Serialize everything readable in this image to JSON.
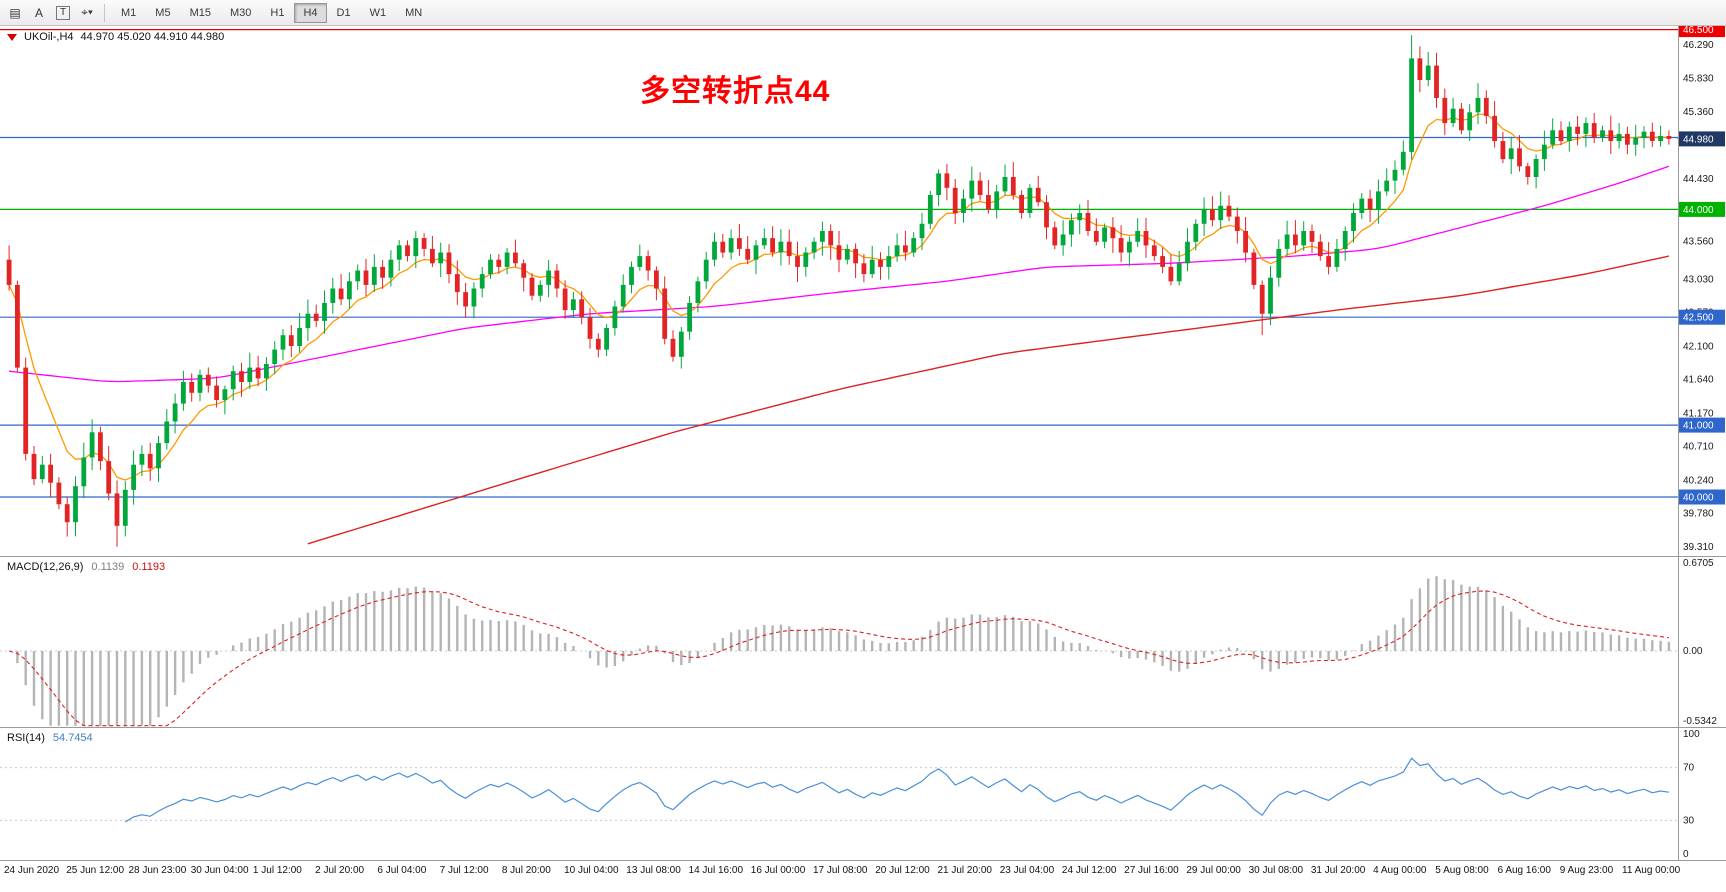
{
  "toolbar": {
    "tools": [
      {
        "id": "chart-list",
        "glyph": "▤"
      },
      {
        "id": "label-tool",
        "glyph": "A"
      },
      {
        "id": "text-tool",
        "glyph": "T"
      },
      {
        "id": "shapes-dropdown",
        "glyph": "⌖",
        "caret": "▾"
      }
    ],
    "timeframes": [
      "M1",
      "M5",
      "M15",
      "M30",
      "H1",
      "H4",
      "D1",
      "W1",
      "MN"
    ],
    "active_timeframe": "H4"
  },
  "chart": {
    "symbol": "UKOil-,H4",
    "ohlc": "44.970 45.020 44.910 44.980",
    "annotation": "多空转折点44",
    "annotation_color": "#ff0000",
    "candle_up": "#00a83c",
    "candle_down": "#e32424",
    "current_price_tag": {
      "label": "44.980",
      "value": 44.98,
      "bg": "#1f3864"
    },
    "levels": [
      {
        "value": 46.5,
        "label": "46.500",
        "color": "#ee0000",
        "tag": true
      },
      {
        "value": 45.0,
        "label": "",
        "color": "#2f66cc",
        "tag": false
      },
      {
        "value": 44.0,
        "label": "44.000",
        "color": "#00b200",
        "tag": true
      },
      {
        "value": 42.5,
        "label": "42.500",
        "color": "#2f66cc",
        "tag": true
      },
      {
        "value": 41.0,
        "label": "41.000",
        "color": "#2f66cc",
        "tag": true
      },
      {
        "value": 40.0,
        "label": "40.000",
        "color": "#2f66cc",
        "tag": true
      }
    ],
    "price_ticks": [
      "46.290",
      "45.830",
      "45.360",
      "44.430",
      "43.560",
      "43.030",
      "42.570",
      "42.100",
      "41.640",
      "41.170",
      "40.710",
      "40.240",
      "39.780",
      "39.310"
    ]
  },
  "chart_data": {
    "type": "candlestick",
    "symbol": "UKOil-",
    "timeframe": "H4",
    "title_annotation": "多空转折点44",
    "price_range": [
      39.18,
      46.55
    ],
    "open_first": 43.3,
    "closes": [
      42.95,
      41.8,
      40.6,
      40.25,
      40.45,
      40.2,
      39.9,
      39.65,
      40.15,
      40.55,
      40.9,
      40.5,
      40.05,
      39.6,
      40.1,
      40.45,
      40.6,
      40.4,
      40.75,
      41.05,
      41.3,
      41.6,
      41.45,
      41.7,
      41.55,
      41.35,
      41.5,
      41.75,
      41.6,
      41.8,
      41.65,
      41.85,
      42.05,
      42.25,
      42.1,
      42.35,
      42.55,
      42.45,
      42.7,
      42.9,
      42.75,
      43.0,
      43.15,
      42.95,
      43.2,
      43.05,
      43.3,
      43.5,
      43.35,
      43.6,
      43.45,
      43.25,
      43.4,
      43.1,
      42.85,
      42.65,
      42.9,
      43.1,
      43.3,
      43.2,
      43.4,
      43.25,
      43.05,
      42.8,
      42.95,
      43.15,
      42.9,
      42.6,
      42.75,
      42.5,
      42.2,
      42.05,
      42.35,
      42.65,
      42.95,
      43.2,
      43.35,
      43.15,
      42.9,
      42.2,
      41.95,
      42.3,
      42.7,
      43.0,
      43.3,
      43.55,
      43.4,
      43.6,
      43.45,
      43.3,
      43.5,
      43.6,
      43.4,
      43.55,
      43.35,
      43.2,
      43.4,
      43.55,
      43.7,
      43.5,
      43.3,
      43.45,
      43.25,
      43.1,
      43.3,
      43.2,
      43.35,
      43.5,
      43.4,
      43.6,
      43.8,
      44.2,
      44.5,
      44.3,
      43.95,
      44.15,
      44.4,
      44.2,
      44.0,
      44.25,
      44.45,
      44.2,
      43.95,
      44.3,
      44.1,
      43.75,
      43.5,
      43.65,
      43.85,
      43.95,
      43.7,
      43.55,
      43.75,
      43.6,
      43.4,
      43.55,
      43.7,
      43.5,
      43.35,
      43.2,
      43.0,
      43.25,
      43.55,
      43.8,
      44.0,
      43.85,
      44.05,
      43.9,
      43.7,
      43.4,
      42.95,
      42.55,
      43.05,
      43.45,
      43.65,
      43.5,
      43.7,
      43.55,
      43.35,
      43.2,
      43.45,
      43.7,
      43.95,
      44.15,
      44.0,
      44.25,
      44.4,
      44.55,
      44.8,
      46.1,
      45.8,
      46.0,
      45.55,
      45.2,
      45.4,
      45.1,
      45.35,
      45.55,
      45.3,
      44.95,
      44.7,
      44.85,
      44.6,
      44.45,
      44.7,
      44.9,
      45.1,
      44.95,
      45.15,
      45.05,
      45.2,
      45.0,
      45.1,
      44.95,
      45.05,
      44.9,
      45.0,
      45.08,
      44.95,
      45.02,
      44.98
    ],
    "wick_overrides": {
      "7": {
        "low": 39.45
      },
      "13": {
        "low": 39.31
      },
      "151": {
        "low": 42.25
      },
      "169": {
        "high": 46.42
      }
    },
    "overlays": {
      "ma_fast": {
        "color": "#ff9900",
        "type": "ema",
        "period": 8
      },
      "ma_mid": {
        "color": "#ff00ff",
        "keypoints": [
          [
            0,
            41.75
          ],
          [
            12,
            41.6
          ],
          [
            25,
            41.65
          ],
          [
            40,
            42.0
          ],
          [
            55,
            42.35
          ],
          [
            70,
            42.55
          ],
          [
            85,
            42.65
          ],
          [
            100,
            42.85
          ],
          [
            113,
            43.0
          ],
          [
            125,
            43.2
          ],
          [
            140,
            43.25
          ],
          [
            155,
            43.35
          ],
          [
            165,
            43.45
          ],
          [
            175,
            43.75
          ],
          [
            185,
            44.05
          ],
          [
            195,
            44.4
          ],
          [
            200,
            44.6
          ]
        ]
      },
      "ma_slow": {
        "color": "#dd2222",
        "keypoints": [
          [
            36,
            39.35
          ],
          [
            60,
            40.2
          ],
          [
            80,
            40.9
          ],
          [
            100,
            41.5
          ],
          [
            120,
            42.0
          ],
          [
            140,
            42.3
          ],
          [
            160,
            42.6
          ],
          [
            175,
            42.8
          ],
          [
            190,
            43.1
          ],
          [
            200,
            43.35
          ]
        ]
      }
    },
    "indicators": {
      "macd": {
        "title": "MACD(12,26,9)",
        "value_main": "0.1139",
        "value_signal": "0.1193",
        "params": [
          12,
          26,
          9
        ],
        "hist_color": "#b4b4b4",
        "signal_color": "#dd2222",
        "scale": {
          "top": 0.6705,
          "bottom": -0.5342,
          "top_label": "0.6705",
          "zero_label": "0.00",
          "bottom_label": "-0.5342"
        }
      },
      "rsi": {
        "title": "RSI(14)",
        "value": "54.7454",
        "period": 14,
        "line_color": "#4a90d9",
        "levels": [
          70,
          30
        ],
        "scale_labels": [
          "100",
          "70",
          "30",
          "0"
        ]
      }
    },
    "x_labels": [
      "24 Jun 2020",
      "25 Jun 12:00",
      "28 Jun 23:00",
      "30 Jun 04:00",
      "1 Jul 12:00",
      "2 Jul 20:00",
      "6 Jul 04:00",
      "7 Jul 12:00",
      "8 Jul 20:00",
      "10 Jul 04:00",
      "13 Jul 08:00",
      "14 Jul 16:00",
      "16 Jul 00:00",
      "17 Jul 08:00",
      "20 Jul 12:00",
      "21 Jul 20:00",
      "23 Jul 04:00",
      "24 Jul 12:00",
      "27 Jul 16:00",
      "29 Jul 00:00",
      "30 Jul 08:00",
      "31 Jul 20:00",
      "4 Aug 00:00",
      "5 Aug 08:00",
      "6 Aug 16:00",
      "9 Aug 23:00",
      "11 Aug 00:00"
    ]
  }
}
